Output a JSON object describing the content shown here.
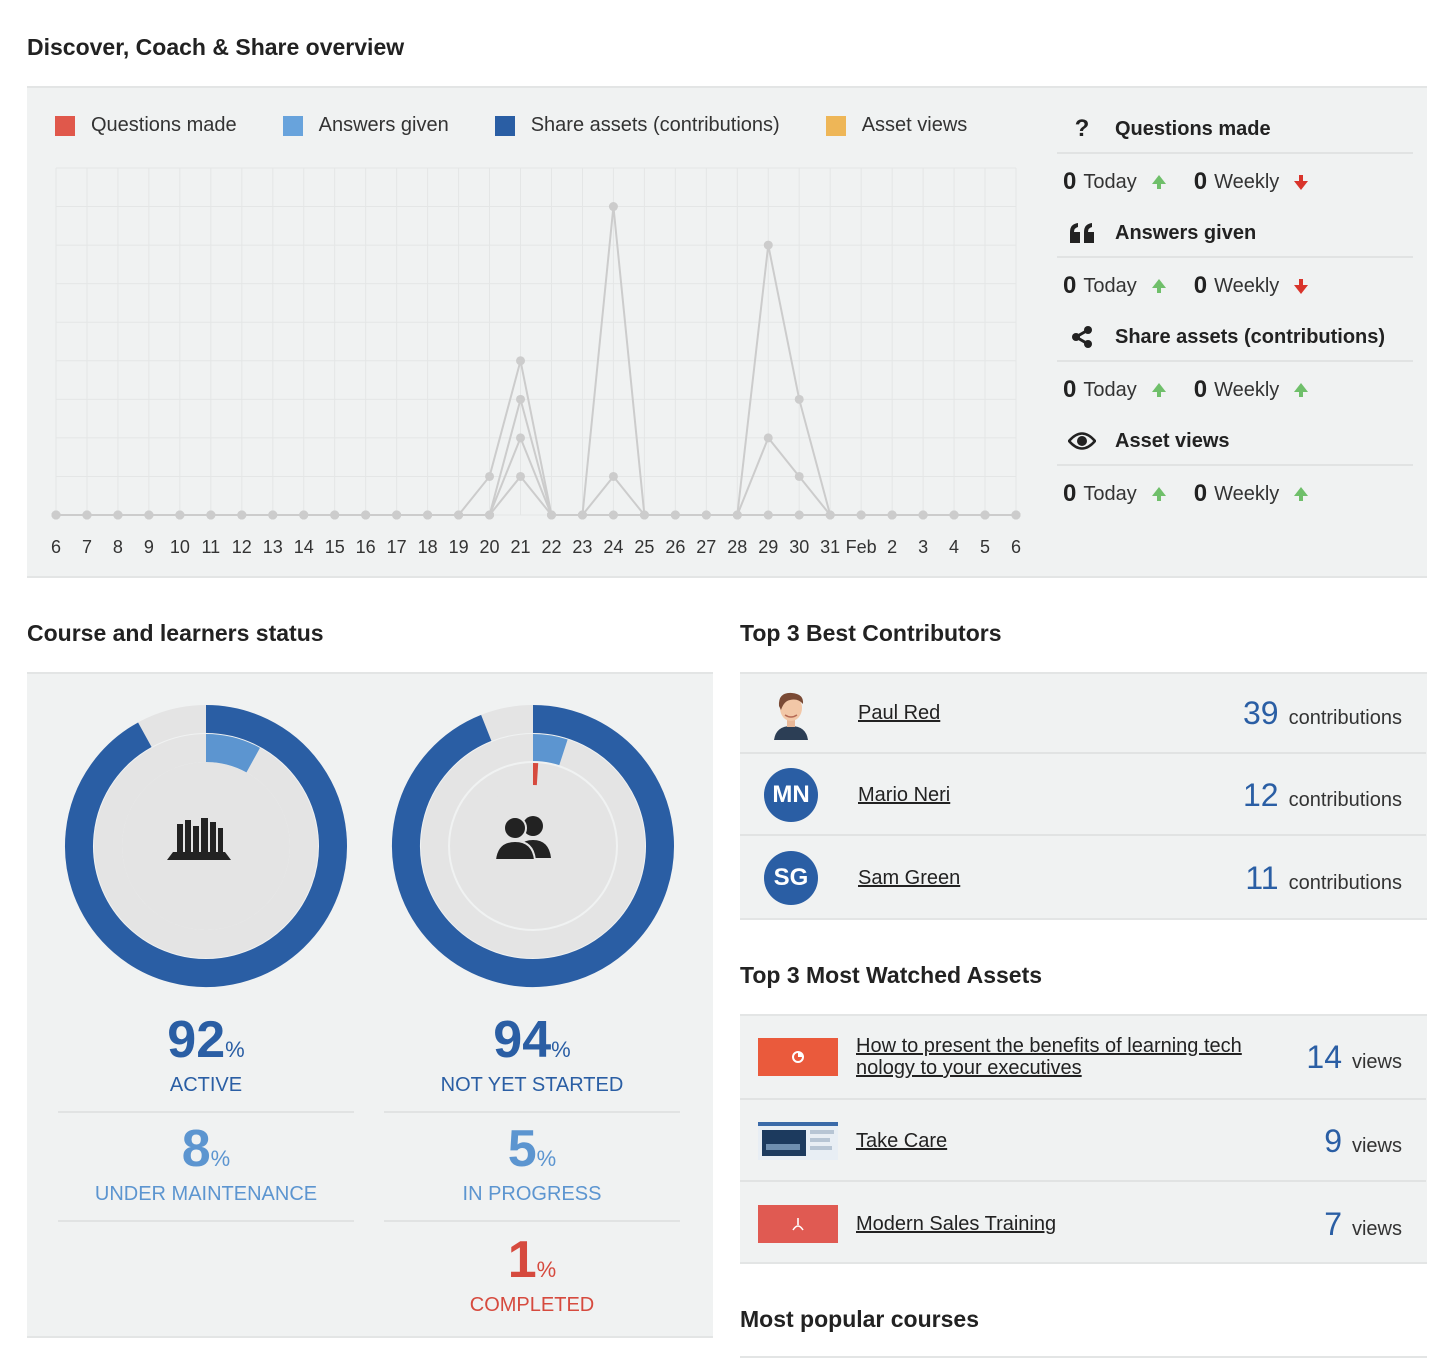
{
  "overview": {
    "title": "Discover, Coach & Share overview",
    "legend": [
      {
        "label": "Questions made",
        "color": "#e0584b"
      },
      {
        "label": "Answers given",
        "color": "#68a3dc"
      },
      {
        "label": "Share assets (contributions)",
        "color": "#2a5ea4"
      },
      {
        "label": "Asset views",
        "color": "#eeb657"
      }
    ],
    "stats": [
      {
        "icon": "question-icon",
        "label": "Questions made",
        "today": "0",
        "today_label": "Today",
        "today_trend": "up",
        "weekly": "0",
        "weekly_label": "Weekly",
        "weekly_trend": "down"
      },
      {
        "icon": "quote-icon",
        "label": "Answers given",
        "today": "0",
        "today_label": "Today",
        "today_trend": "up",
        "weekly": "0",
        "weekly_label": "Weekly",
        "weekly_trend": "down"
      },
      {
        "icon": "share-icon",
        "label": "Share assets (contributions)",
        "today": "0",
        "today_label": "Today",
        "today_trend": "up",
        "weekly": "0",
        "weekly_label": "Weekly",
        "weekly_trend": "up"
      },
      {
        "icon": "eye-icon",
        "label": "Asset views",
        "today": "0",
        "today_label": "Today",
        "today_trend": "up",
        "weekly": "0",
        "weekly_label": "Weekly",
        "weekly_trend": "up"
      }
    ]
  },
  "chart_data": {
    "type": "line",
    "x": [
      "6",
      "7",
      "8",
      "9",
      "10",
      "11",
      "12",
      "13",
      "14",
      "15",
      "16",
      "17",
      "18",
      "19",
      "20",
      "21",
      "22",
      "23",
      "24",
      "25",
      "26",
      "27",
      "28",
      "29",
      "30",
      "31",
      "Feb",
      "2",
      "3",
      "4",
      "5",
      "6"
    ],
    "ylim": [
      0,
      9
    ],
    "grid": true,
    "legend_position": "top",
    "line_color": "#cccccc",
    "series": [
      {
        "name": "Questions made",
        "values": [
          0,
          0,
          0,
          0,
          0,
          0,
          0,
          0,
          0,
          0,
          0,
          0,
          0,
          0,
          1,
          4,
          0,
          0,
          8,
          0,
          0,
          0,
          0,
          7,
          3,
          0,
          0,
          0,
          0,
          0,
          0,
          0
        ]
      },
      {
        "name": "Answers given",
        "values": [
          0,
          0,
          0,
          0,
          0,
          0,
          0,
          0,
          0,
          0,
          0,
          0,
          0,
          0,
          0,
          3,
          0,
          0,
          1,
          0,
          0,
          0,
          0,
          2,
          1,
          0,
          0,
          0,
          0,
          0,
          0,
          0
        ]
      },
      {
        "name": "Share assets (contributions)",
        "values": [
          0,
          0,
          0,
          0,
          0,
          0,
          0,
          0,
          0,
          0,
          0,
          0,
          0,
          0,
          0,
          2,
          0,
          0,
          0,
          0,
          0,
          0,
          0,
          0,
          0,
          0,
          0,
          0,
          0,
          0,
          0,
          0
        ]
      },
      {
        "name": "Asset views",
        "values": [
          0,
          0,
          0,
          0,
          0,
          0,
          0,
          0,
          0,
          0,
          0,
          0,
          0,
          0,
          0,
          1,
          0,
          0,
          0,
          0,
          0,
          0,
          0,
          0,
          0,
          0,
          0,
          0,
          0,
          0,
          0,
          0
        ]
      }
    ]
  },
  "status": {
    "title": "Course and learners status",
    "courses": {
      "icon": "books-icon",
      "ring_active": 0.92,
      "ring_maintenance": 0.08,
      "active_value": "92",
      "active_unit": "%",
      "active_label": "ACTIVE",
      "maint_value": "8",
      "maint_unit": "%",
      "maint_label": "UNDER MAINTENANCE"
    },
    "learners": {
      "icon": "users-icon",
      "ring_not_started": 0.94,
      "ring_in_progress": 0.05,
      "ring_completed": 0.01,
      "ns_value": "94",
      "ns_unit": "%",
      "ns_label": "NOT YET STARTED",
      "ip_value": "5",
      "ip_unit": "%",
      "ip_label": "IN PROGRESS",
      "c_value": "1",
      "c_unit": "%",
      "c_label": "COMPLETED"
    },
    "colors": {
      "dark": "#2a5ea4",
      "light": "#5c95d0",
      "red": "#d64a3e",
      "track": "#e4e4e4"
    }
  },
  "contributors": {
    "title": "Top 3 Best Contributors",
    "items": [
      {
        "initials": "",
        "avatar": "person-avatar-icon",
        "name": "Paul Red",
        "count": "39",
        "unit": "contributions"
      },
      {
        "initials": "MN",
        "name": "Mario Neri",
        "count": "12",
        "unit": "contributions"
      },
      {
        "initials": "SG",
        "name": "Sam Green",
        "count": "11",
        "unit": "contributions"
      }
    ]
  },
  "assets": {
    "title": "Top 3 Most Watched Assets",
    "items": [
      {
        "thumb": "presentation-thumb-icon",
        "name_line1": "How to present the benefits of learning tech",
        "name_line2": "nology to your executives",
        "count": "14",
        "unit": "views"
      },
      {
        "thumb": "screenshot-thumb",
        "name_line1": "Take Care",
        "name_line2": "",
        "count": "9",
        "unit": "views"
      },
      {
        "thumb": "pdf-thumb-icon",
        "name_line1": "Modern Sales Training",
        "name_line2": "",
        "count": "7",
        "unit": "views"
      }
    ]
  },
  "popular": {
    "title": "Most popular courses"
  }
}
